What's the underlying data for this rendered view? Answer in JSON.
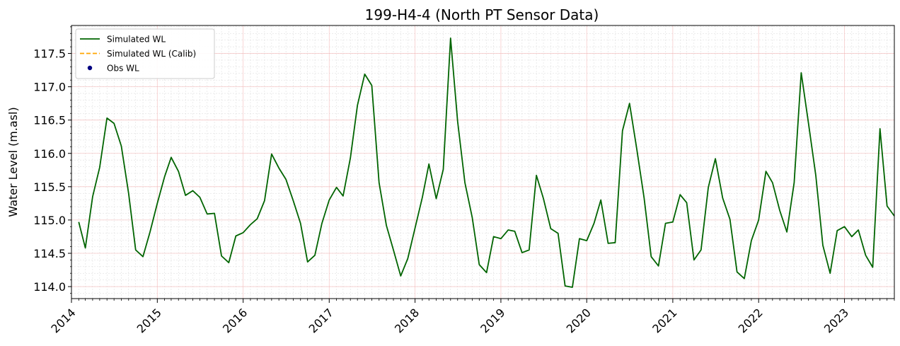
{
  "chart_data": {
    "type": "line",
    "title": "199-H4-4 (North PT Sensor Data)",
    "xlabel": "",
    "ylabel": "Water Level (m.asl)",
    "xlim": [
      "2014-01-01",
      "2023-08-01"
    ],
    "ylim": [
      113.82,
      117.92
    ],
    "yticks": [
      114.0,
      114.5,
      115.0,
      115.5,
      116.0,
      116.5,
      117.0,
      117.5
    ],
    "ytick_labels": [
      "114.0",
      "114.5",
      "115.0",
      "115.5",
      "116.0",
      "116.5",
      "117.0",
      "117.5"
    ],
    "xticks": [
      "2014-01-01",
      "2015-01-01",
      "2016-01-01",
      "2017-01-01",
      "2018-01-01",
      "2019-01-01",
      "2020-01-01",
      "2021-01-01",
      "2022-01-01",
      "2023-01-01"
    ],
    "xtick_labels": [
      "2014",
      "2015",
      "2016",
      "2017",
      "2018",
      "2019",
      "2020",
      "2021",
      "2022",
      "2023"
    ],
    "grid": true,
    "legend_position": "top-left",
    "legend": [
      {
        "label": "Simulated WL",
        "color": "#006400",
        "style": "solid"
      },
      {
        "label": "Simulated WL (Calib)",
        "color": "#ffa500",
        "style": "dashed"
      },
      {
        "label": "Obs WL",
        "color": "#000080",
        "style": "marker"
      }
    ],
    "series": [
      {
        "name": "Simulated WL",
        "color": "#006400",
        "x": [
          "2014-02-01",
          "2014-03-01",
          "2014-04-01",
          "2014-05-01",
          "2014-06-01",
          "2014-07-01",
          "2014-08-01",
          "2014-09-01",
          "2014-10-01",
          "2014-11-01",
          "2014-12-01",
          "2015-01-01",
          "2015-02-01",
          "2015-03-01",
          "2015-04-01",
          "2015-05-01",
          "2015-06-01",
          "2015-07-01",
          "2015-08-01",
          "2015-09-01",
          "2015-10-01",
          "2015-11-01",
          "2015-12-01",
          "2016-01-01",
          "2016-02-01",
          "2016-03-01",
          "2016-04-01",
          "2016-05-01",
          "2016-06-01",
          "2016-07-01",
          "2016-08-01",
          "2016-09-01",
          "2016-10-01",
          "2016-11-01",
          "2016-12-01",
          "2017-01-01",
          "2017-02-01",
          "2017-03-01",
          "2017-04-01",
          "2017-05-01",
          "2017-06-01",
          "2017-07-01",
          "2017-08-01",
          "2017-09-01",
          "2017-10-01",
          "2017-11-01",
          "2017-12-01",
          "2018-01-01",
          "2018-02-01",
          "2018-03-01",
          "2018-04-01",
          "2018-05-01",
          "2018-06-01",
          "2018-07-01",
          "2018-08-01",
          "2018-09-01",
          "2018-10-01",
          "2018-11-01",
          "2018-12-01",
          "2019-01-01",
          "2019-02-01",
          "2019-03-01",
          "2019-04-01",
          "2019-05-01",
          "2019-06-01",
          "2019-07-01",
          "2019-08-01",
          "2019-09-01",
          "2019-10-01",
          "2019-11-01",
          "2019-12-01",
          "2020-01-01",
          "2020-02-01",
          "2020-03-01",
          "2020-04-01",
          "2020-05-01",
          "2020-06-01",
          "2020-07-01",
          "2020-08-01",
          "2020-09-01",
          "2020-10-01",
          "2020-11-01",
          "2020-12-01",
          "2021-01-01",
          "2021-02-01",
          "2021-03-01",
          "2021-04-01",
          "2021-05-01",
          "2021-06-01",
          "2021-07-01",
          "2021-08-01",
          "2021-09-01",
          "2021-10-01",
          "2021-11-01",
          "2021-12-01",
          "2022-01-01",
          "2022-02-01",
          "2022-03-01",
          "2022-04-01",
          "2022-05-01",
          "2022-06-01",
          "2022-07-01",
          "2022-08-01",
          "2022-09-01",
          "2022-10-01",
          "2022-11-01",
          "2022-12-01",
          "2023-01-01",
          "2023-02-01",
          "2023-03-01",
          "2023-04-01",
          "2023-05-01",
          "2023-06-01",
          "2023-07-01",
          "2023-08-01"
        ],
        "y": [
          114.97,
          114.58,
          115.35,
          115.79,
          116.53,
          116.45,
          116.11,
          115.4,
          114.55,
          114.45,
          114.82,
          115.25,
          115.65,
          115.94,
          115.73,
          115.37,
          115.44,
          115.34,
          115.09,
          115.1,
          114.46,
          114.36,
          114.76,
          114.81,
          114.93,
          115.02,
          115.29,
          115.99,
          115.78,
          115.61,
          115.29,
          114.95,
          114.37,
          114.47,
          114.95,
          115.3,
          115.49,
          115.36,
          115.93,
          116.72,
          117.19,
          117.02,
          115.56,
          114.92,
          114.55,
          114.16,
          114.42,
          114.88,
          115.34,
          115.84,
          115.32,
          115.76,
          117.73,
          116.48,
          115.56,
          115.04,
          114.33,
          114.21,
          114.75,
          114.72,
          114.85,
          114.83,
          114.51,
          114.55,
          115.67,
          115.32,
          114.87,
          114.8,
          114.01,
          113.99,
          114.72,
          114.69,
          114.95,
          115.3,
          114.65,
          114.66,
          116.34,
          116.75,
          116.06,
          115.33,
          114.45,
          114.31,
          114.95,
          114.97,
          115.38,
          115.26,
          114.4,
          114.55,
          115.49,
          115.92,
          115.33,
          115.01,
          114.22,
          114.12,
          114.69,
          115.0,
          115.73,
          115.56,
          115.14,
          114.82,
          115.56,
          117.21,
          116.45,
          115.67,
          114.62,
          114.2,
          114.84,
          114.9,
          114.75,
          114.85,
          114.47,
          114.29,
          116.37,
          115.21,
          115.06
        ]
      },
      {
        "name": "Simulated WL (Calib)",
        "color": "#ffa500",
        "x": [],
        "y": []
      },
      {
        "name": "Obs WL",
        "color": "#000080",
        "x": [],
        "y": []
      }
    ]
  }
}
